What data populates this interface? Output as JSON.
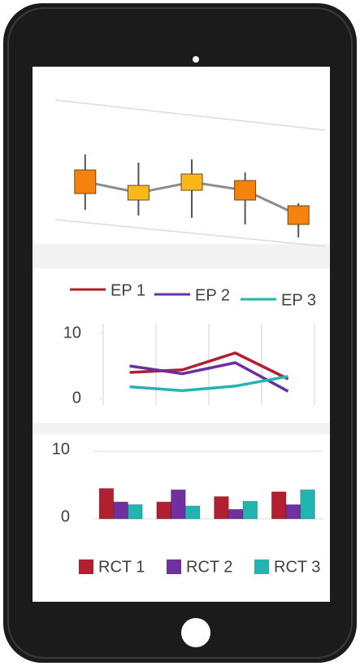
{
  "chart_data": [
    {
      "type": "candlestick",
      "open": [
        91,
        54,
        66,
        78,
        47
      ],
      "high": [
        110,
        100,
        104,
        88,
        50
      ],
      "low": [
        42,
        35,
        32,
        24,
        8
      ],
      "close": [
        62,
        72,
        86,
        54,
        24
      ],
      "up_color": "#f9b81a",
      "down_color": "#f5820d",
      "line_color": "#8c8c8c"
    },
    {
      "type": "line",
      "categories": [
        null,
        null,
        null,
        null
      ],
      "series": [
        {
          "name": "EP 1",
          "color": "#b0202f",
          "values": [
            4,
            4.4,
            7,
            3
          ]
        },
        {
          "name": "EP 2",
          "color": "#6a2fa0",
          "values": [
            5,
            3.8,
            5.5,
            1.1
          ]
        },
        {
          "name": "EP 3",
          "color": "#22b5ae",
          "values": [
            1.8,
            1.2,
            1.9,
            3.4
          ]
        }
      ],
      "ylim": [
        0,
        10
      ],
      "yticks": [
        0,
        10
      ]
    },
    {
      "type": "bar",
      "categories": [
        null,
        null,
        null,
        null
      ],
      "series": [
        {
          "name": "RCT 1",
          "color": "#b0202f",
          "values": [
            4.5,
            2.5,
            3.3,
            4.0
          ]
        },
        {
          "name": "RCT 2",
          "color": "#7030a0",
          "values": [
            2.5,
            4.3,
            1.4,
            2.1
          ]
        },
        {
          "name": "RCT 3",
          "color": "#20b5ae",
          "values": [
            2.1,
            1.9,
            2.6,
            4.3
          ]
        }
      ],
      "ylim": [
        0,
        10
      ],
      "yticks": [
        0,
        10
      ],
      "grid": true
    }
  ]
}
